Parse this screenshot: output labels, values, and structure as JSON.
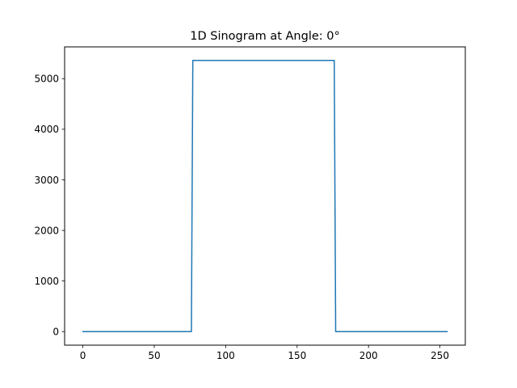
{
  "chart_data": {
    "type": "line",
    "title": "1D Sinogram at Angle: 0°",
    "xlabel": "",
    "ylabel": "",
    "xlim": [
      -12.75,
      267.75
    ],
    "ylim": [
      -268,
      5628
    ],
    "x_ticks": [
      0,
      50,
      100,
      150,
      200,
      250
    ],
    "y_ticks": [
      0,
      1000,
      2000,
      3000,
      4000,
      5000
    ],
    "grid": false,
    "legend": "none",
    "series": [
      {
        "color": "#1f77b4",
        "points": [
          [
            0,
            0
          ],
          [
            76,
            0
          ],
          [
            77,
            5360
          ],
          [
            176,
            5360
          ],
          [
            177,
            0
          ],
          [
            255,
            0
          ]
        ]
      }
    ]
  }
}
